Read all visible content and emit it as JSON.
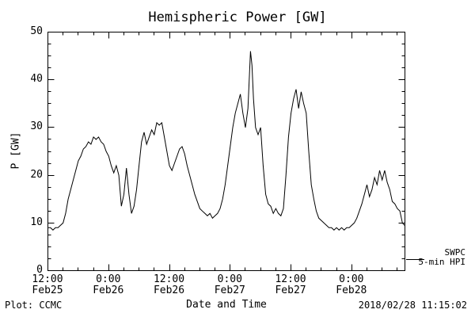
{
  "page": {
    "footer_left": "Plot: CCMC",
    "footer_right": "2018/02/28 11:15:02"
  },
  "chart_data": {
    "type": "line",
    "title": "Hemispheric Power [GW]",
    "xlabel": "Date and Time",
    "ylabel": "P [GW]",
    "legend": [
      "SWPC",
      "5-min HPI"
    ],
    "legend_position": "right-bottom-outside",
    "grid": false,
    "line_color": "#000000",
    "background_color": "#ffffff",
    "ylim": [
      0,
      50
    ],
    "yticks": [
      0,
      10,
      20,
      30,
      40,
      50
    ],
    "y_minor_step": 2.5,
    "x_hours_range": [
      0,
      70.5
    ],
    "x_minor_step_hours": 3,
    "xticks": [
      {
        "hours": 0,
        "time": "12:00",
        "date": "Feb25"
      },
      {
        "hours": 12,
        "time": "0:00",
        "date": "Feb26"
      },
      {
        "hours": 24,
        "time": "12:00",
        "date": "Feb26"
      },
      {
        "hours": 36,
        "time": "0:00",
        "date": "Feb27"
      },
      {
        "hours": 48,
        "time": "12:00",
        "date": "Feb27"
      },
      {
        "hours": 60,
        "time": "0:00",
        "date": "Feb28"
      }
    ],
    "x_hours": [
      0,
      0.5,
      1,
      1.5,
      2,
      2.5,
      3,
      3.5,
      4,
      4.5,
      5,
      5.5,
      6,
      6.5,
      7,
      7.5,
      8,
      8.5,
      9,
      9.5,
      10,
      10.5,
      11,
      11.5,
      12,
      12.5,
      13,
      13.5,
      14,
      14.5,
      15,
      15.5,
      16,
      16.5,
      17,
      17.5,
      18,
      18.5,
      19,
      19.5,
      20,
      20.5,
      21,
      21.5,
      22,
      22.5,
      23,
      23.5,
      24,
      24.5,
      25,
      25.5,
      26,
      26.5,
      27,
      27.5,
      28,
      28.5,
      29,
      29.5,
      30,
      30.5,
      31,
      31.5,
      32,
      32.5,
      33,
      33.5,
      34,
      34.5,
      35,
      35.5,
      36,
      36.5,
      37,
      37.5,
      38,
      38.5,
      39,
      39.5,
      40,
      40.3,
      40.6,
      41,
      41.5,
      42,
      42.5,
      43,
      43.5,
      44,
      44.5,
      45,
      45.5,
      46,
      46.5,
      47,
      47.5,
      48,
      48.5,
      49,
      49.5,
      50,
      50.5,
      51,
      51.5,
      52,
      52.5,
      53,
      53.5,
      54,
      54.5,
      55,
      55.5,
      56,
      56.5,
      57,
      57.5,
      58,
      58.5,
      59,
      59.5,
      60,
      60.5,
      61,
      61.5,
      62,
      62.5,
      63,
      63.5,
      64,
      64.5,
      65,
      65.5,
      66,
      66.5,
      67,
      67.5,
      68,
      68.5,
      69,
      69.5,
      70,
      70.4
    ],
    "values": [
      9,
      9,
      8.5,
      9,
      9,
      9.5,
      10,
      12,
      15,
      17,
      19,
      21,
      23,
      24,
      25.5,
      26,
      27,
      26.5,
      28,
      27.5,
      28,
      27,
      26.5,
      25,
      24,
      22,
      20.5,
      22,
      20,
      13.5,
      16,
      21.5,
      16,
      12,
      13.5,
      17,
      22,
      27,
      29,
      26.5,
      28,
      29.5,
      28.5,
      31,
      30.5,
      31,
      28,
      25,
      22,
      21,
      22.5,
      24,
      25.5,
      26,
      24.5,
      22,
      20,
      18,
      16,
      14.5,
      13,
      12.5,
      12,
      11.5,
      12,
      11,
      11.5,
      12,
      13,
      15,
      18,
      22,
      26,
      30,
      33,
      35,
      37,
      33,
      30,
      34,
      46,
      43,
      36,
      30,
      28.5,
      30,
      22,
      16,
      14,
      13.5,
      12,
      13,
      12,
      11.5,
      13,
      20,
      28,
      33,
      36,
      38,
      34,
      37.5,
      35,
      33,
      25,
      18,
      15,
      12.5,
      11,
      10.5,
      10,
      9.5,
      9,
      9,
      8.5,
      9,
      8.5,
      9,
      8.5,
      9,
      9,
      9.5,
      10,
      11,
      12.5,
      14,
      16,
      18,
      15.5,
      17,
      19.5,
      18,
      21,
      19,
      21,
      18.5,
      17,
      14.5,
      14,
      13,
      12.5,
      10,
      9.5
    ]
  }
}
